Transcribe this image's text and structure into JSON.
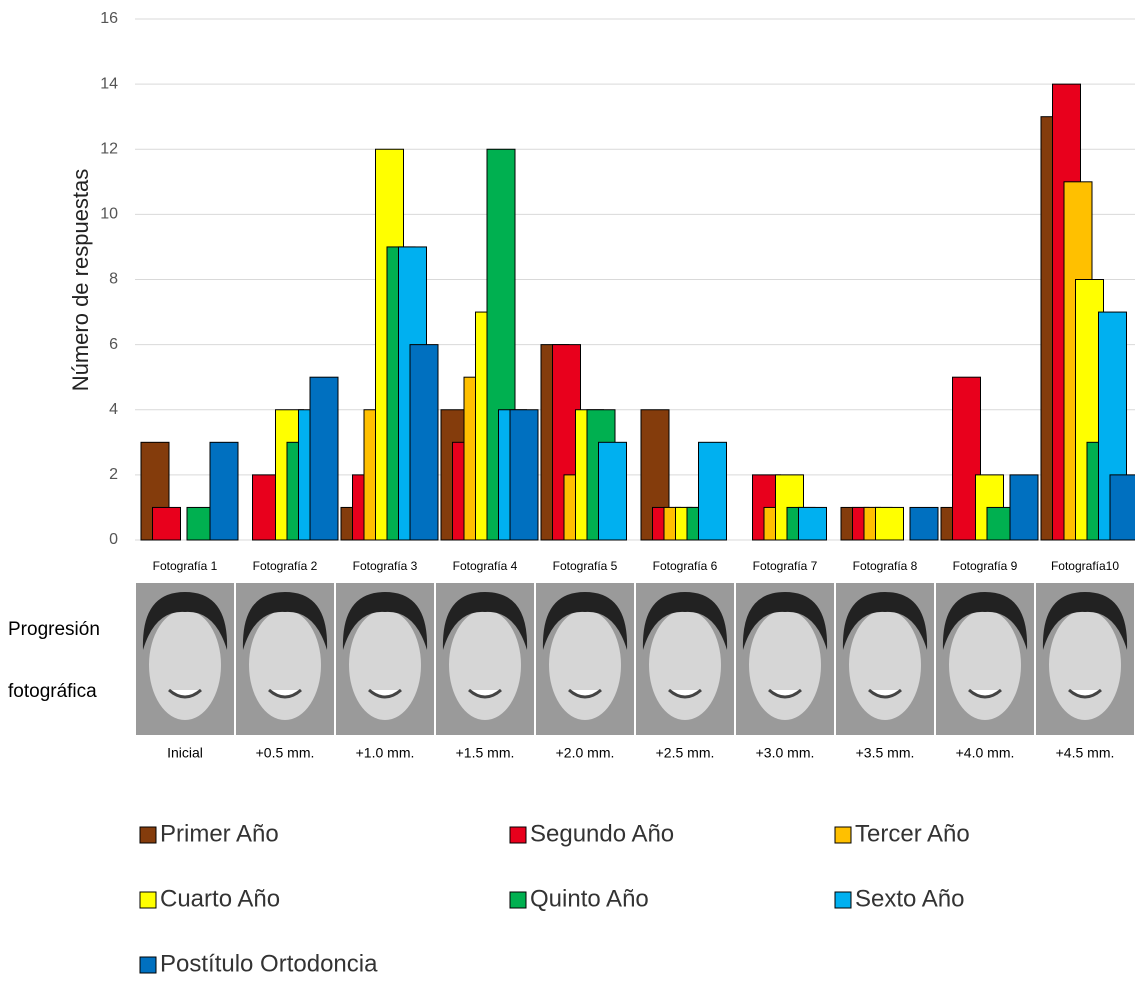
{
  "chart_data": {
    "type": "bar",
    "y_label": "Número de respuestas",
    "categories": [
      "Fotografía 1",
      "Fotografía 2",
      "Fotografía 3",
      "Fotografía 4",
      "Fotografía 5",
      "Fotografía 6",
      "Fotografía 7",
      "Fotografía 8",
      "Fotografía 9",
      "Fotografía10"
    ],
    "photo_labels": [
      "Inicial",
      "+0.5 mm.",
      "+1.0 mm.",
      "+1.5 mm.",
      "+2.0 mm.",
      "+2.5 mm.",
      "+3.0 mm.",
      "+3.5 mm.",
      "+4.0 mm.",
      "+4.5 mm."
    ],
    "photo_caption": [
      "Progresión",
      "fotográfica"
    ],
    "series": [
      {
        "name": "Primer Año",
        "color": "#843c0c",
        "values": [
          3,
          0,
          1,
          4,
          6,
          4,
          0,
          1,
          1,
          13
        ]
      },
      {
        "name": "Segundo Año",
        "color": "#e8001c",
        "values": [
          1,
          2,
          2,
          3,
          6,
          1,
          2,
          1,
          5,
          14
        ]
      },
      {
        "name": "Tercer Año",
        "color": "#ffc000",
        "values": [
          0,
          0,
          4,
          5,
          2,
          1,
          1,
          1,
          0,
          11
        ]
      },
      {
        "name": "Cuarto Año",
        "color": "#ffff00",
        "values": [
          0,
          4,
          12,
          7,
          4,
          1,
          2,
          1,
          2,
          8
        ]
      },
      {
        "name": "Quinto Año",
        "color": "#00b050",
        "values": [
          1,
          3,
          9,
          12,
          4,
          1,
          1,
          0,
          1,
          3
        ]
      },
      {
        "name": "Sexto Año",
        "color": "#00b0f0",
        "values": [
          0,
          4,
          9,
          4,
          3,
          3,
          1,
          0,
          0,
          7
        ]
      },
      {
        "name": "Postítulo Ortodoncia",
        "color": "#0070c0",
        "values": [
          3,
          5,
          6,
          4,
          0,
          0,
          0,
          1,
          2,
          2
        ]
      }
    ],
    "ylim": [
      0,
      16
    ],
    "yticks": [
      0,
      2,
      4,
      6,
      8,
      10,
      12,
      14,
      16
    ],
    "grid": true,
    "legend": "bottom"
  }
}
